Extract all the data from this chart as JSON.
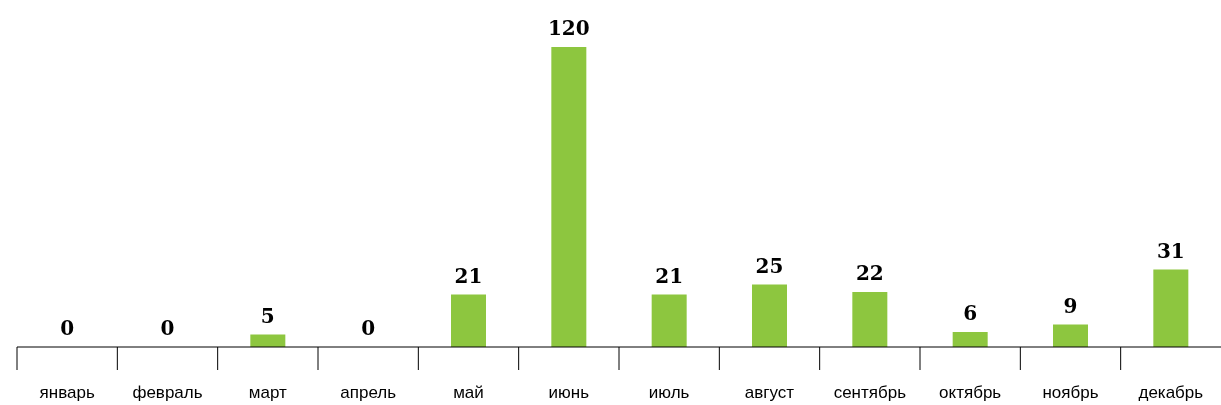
{
  "chart_data": {
    "type": "bar",
    "categories": [
      "январь",
      "февраль",
      "март",
      "апрель",
      "май",
      "июнь",
      "июль",
      "август",
      "сентябрь",
      "октябрь",
      "ноябрь",
      "декабрь"
    ],
    "values": [
      0,
      0,
      5,
      0,
      21,
      120,
      21,
      25,
      22,
      6,
      9,
      31
    ],
    "color": "#8dc63f",
    "data_labels": true
  }
}
